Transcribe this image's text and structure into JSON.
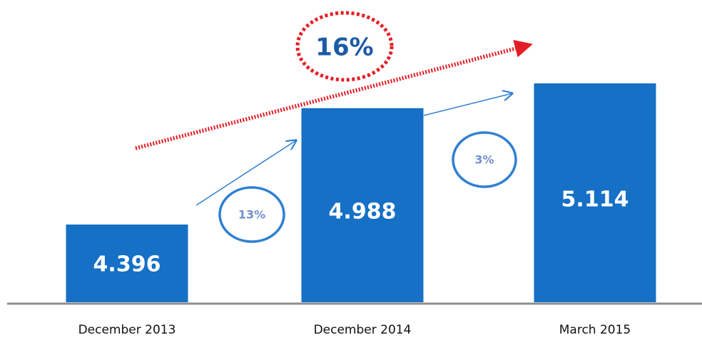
{
  "chart_data": {
    "type": "bar",
    "categories": [
      "December 2013",
      "December 2014",
      "March 2015"
    ],
    "values": [
      4.396,
      4.988,
      5.114
    ],
    "value_labels": [
      "4.396",
      "4.988",
      "5.114"
    ],
    "title": "",
    "xlabel": "",
    "ylabel": "",
    "grid": false,
    "legend": "none",
    "bar_color": "#1570c6",
    "value_label_color": "#ffffff",
    "axis_line_color": "#8c8c8c",
    "annotations": {
      "step_changes": [
        {
          "from": "December 2013",
          "to": "December 2014",
          "label": "13%",
          "color": "#2f80d1",
          "text_color": "#6f8fd0"
        },
        {
          "from": "December 2014",
          "to": "March 2015",
          "label": "3%",
          "color": "#2f80d1",
          "text_color": "#6f8fd0"
        }
      ],
      "overall_change": {
        "from": "December 2013",
        "to": "March 2015",
        "label": "16%",
        "color": "#e41e26",
        "text_color": "#1d5aa8"
      }
    }
  }
}
